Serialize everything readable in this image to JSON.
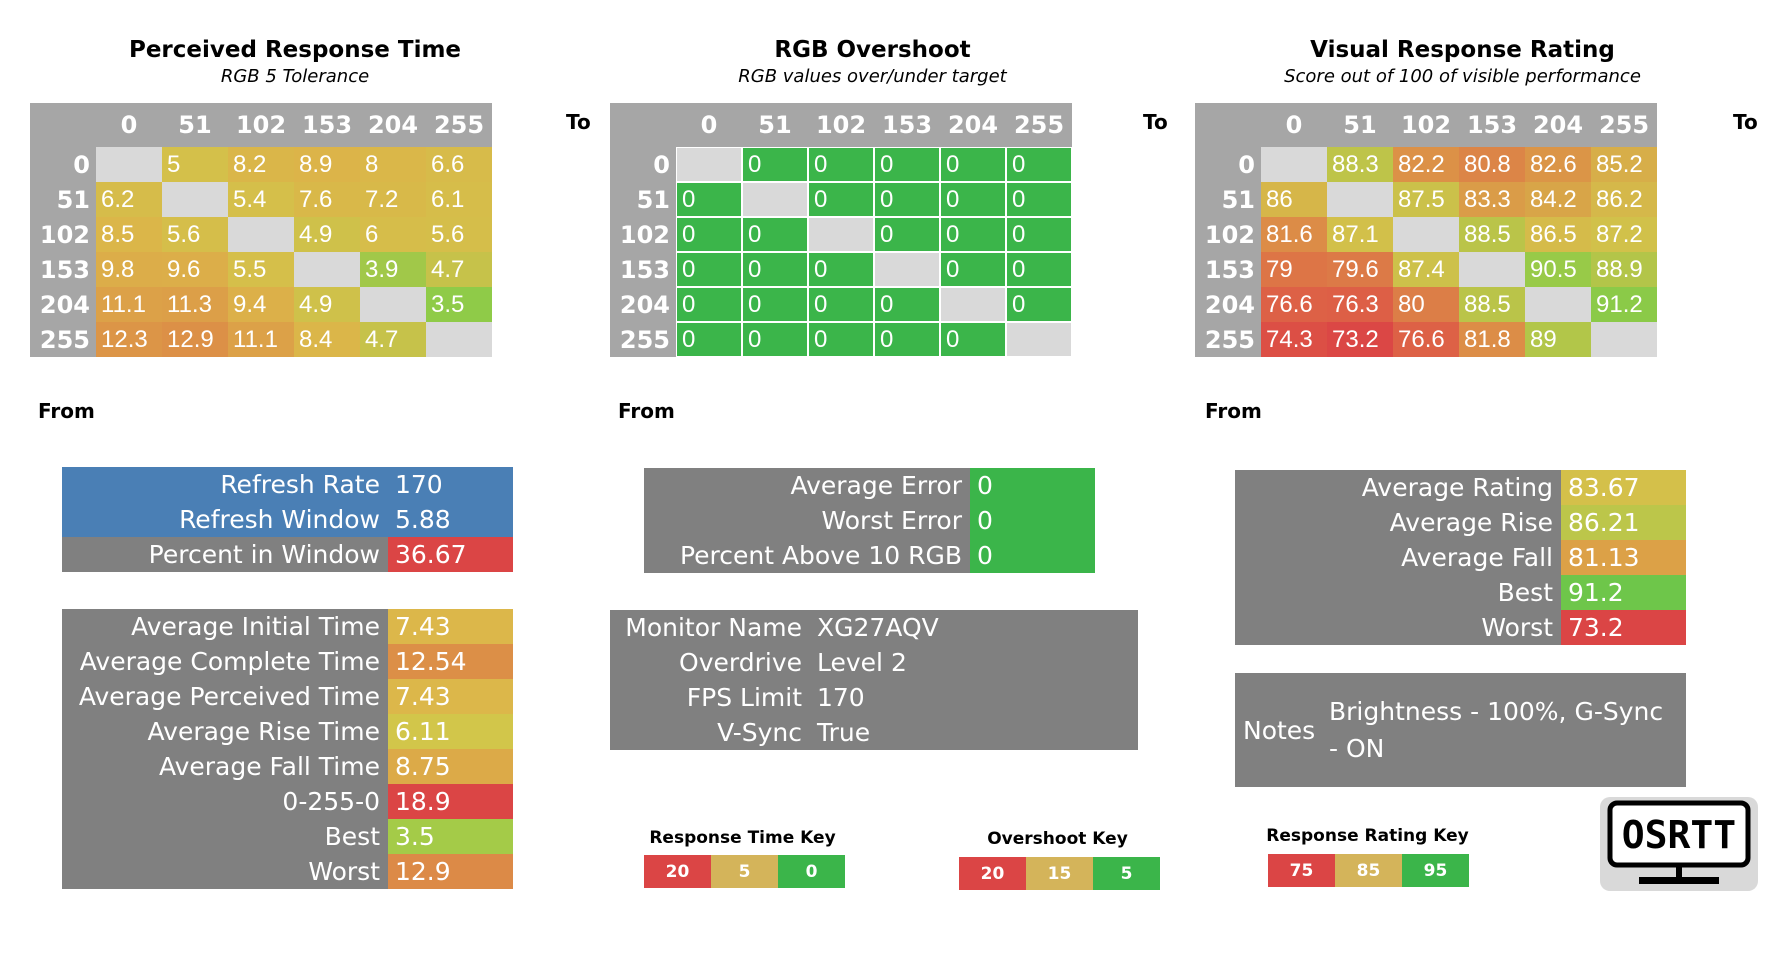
{
  "chart_data": [
    {
      "type": "heatmap",
      "title": "Perceived Response Time",
      "subtitle": "RGB 5 Tolerance",
      "xlabel": "To",
      "ylabel": "From",
      "x": [
        "0",
        "51",
        "102",
        "153",
        "204",
        "255"
      ],
      "y": [
        "0",
        "51",
        "102",
        "153",
        "204",
        "255"
      ],
      "values": [
        [
          null,
          5,
          8.2,
          8.9,
          8,
          6.6
        ],
        [
          6.2,
          null,
          5.4,
          7.6,
          7.2,
          6.1
        ],
        [
          8.5,
          5.6,
          null,
          4.9,
          6,
          5.6
        ],
        [
          9.8,
          9.6,
          5.5,
          null,
          3.9,
          4.7
        ],
        [
          11.1,
          11.3,
          9.4,
          4.9,
          null,
          3.5
        ],
        [
          12.3,
          12.9,
          11.1,
          8.4,
          4.7,
          null
        ]
      ]
    },
    {
      "type": "heatmap",
      "title": "RGB Overshoot",
      "subtitle": "RGB values over/under target",
      "xlabel": "To",
      "ylabel": "From",
      "x": [
        "0",
        "51",
        "102",
        "153",
        "204",
        "255"
      ],
      "y": [
        "0",
        "51",
        "102",
        "153",
        "204",
        "255"
      ],
      "values": [
        [
          null,
          0,
          0,
          0,
          0,
          0
        ],
        [
          0,
          null,
          0,
          0,
          0,
          0
        ],
        [
          0,
          0,
          null,
          0,
          0,
          0
        ],
        [
          0,
          0,
          0,
          null,
          0,
          0
        ],
        [
          0,
          0,
          0,
          0,
          null,
          0
        ],
        [
          0,
          0,
          0,
          0,
          0,
          null
        ]
      ]
    },
    {
      "type": "heatmap",
      "title": "Visual Response Rating",
      "subtitle": "Score out of 100 of visible performance",
      "xlabel": "To",
      "ylabel": "From",
      "x": [
        "0",
        "51",
        "102",
        "153",
        "204",
        "255"
      ],
      "y": [
        "0",
        "51",
        "102",
        "153",
        "204",
        "255"
      ],
      "values": [
        [
          null,
          88.3,
          82.2,
          80.8,
          82.6,
          85.2
        ],
        [
          86,
          null,
          87.5,
          83.3,
          84.2,
          86.2
        ],
        [
          81.6,
          87.1,
          null,
          88.5,
          86.5,
          87.2
        ],
        [
          79,
          79.6,
          87.4,
          null,
          90.5,
          88.9
        ],
        [
          76.6,
          76.3,
          80,
          88.5,
          null,
          91.2
        ],
        [
          74.3,
          73.2,
          76.6,
          81.8,
          89,
          null
        ]
      ]
    }
  ],
  "colors": {
    "header_gray": "#a6a6a6",
    "diag_gray": "#d9d9d9",
    "panel_gray": "#808080",
    "blue": "#4a7fb5",
    "red": "#db4545",
    "yellow": "#d4c04a",
    "light_green": "#8fcb48",
    "green": "#3bb54a",
    "orange": "#dc8f47"
  },
  "refresh_panel": [
    {
      "label": "Refresh Rate",
      "value": "170"
    },
    {
      "label": "Refresh Window",
      "value": "5.88"
    },
    {
      "label": "Percent in Window",
      "value": "36.67"
    }
  ],
  "time_panel": [
    {
      "label": "Average Initial Time",
      "value": "7.43"
    },
    {
      "label": "Average Complete Time",
      "value": "12.54"
    },
    {
      "label": "Average Perceived Time",
      "value": "7.43"
    },
    {
      "label": "Average Rise Time",
      "value": "6.11"
    },
    {
      "label": "Average Fall Time",
      "value": "8.75"
    },
    {
      "label": "0-255-0",
      "value": "18.9"
    },
    {
      "label": "Best",
      "value": "3.5"
    },
    {
      "label": "Worst",
      "value": "12.9"
    }
  ],
  "error_panel": [
    {
      "label": "Average Error",
      "value": "0"
    },
    {
      "label": "Worst Error",
      "value": "0"
    },
    {
      "label": "Percent Above 10 RGB",
      "value": "0"
    }
  ],
  "monitor_panel": [
    {
      "label": "Monitor Name",
      "value": "XG27AQV"
    },
    {
      "label": "Overdrive",
      "value": "Level 2"
    },
    {
      "label": "FPS Limit",
      "value": "170"
    },
    {
      "label": "V-Sync",
      "value": "True"
    }
  ],
  "rating_panel": [
    {
      "label": "Average Rating",
      "value": "83.67"
    },
    {
      "label": "Average Rise",
      "value": "86.21"
    },
    {
      "label": "Average Fall",
      "value": "81.13"
    },
    {
      "label": "Best",
      "value": "91.2"
    },
    {
      "label": "Worst",
      "value": "73.2"
    }
  ],
  "notes": {
    "label": "Notes",
    "value": "Brightness - 100%, G-Sync - ON"
  },
  "keys": [
    {
      "title": "Response Time Key",
      "values": [
        "20",
        "5",
        "0"
      ]
    },
    {
      "title": "Overshoot Key",
      "values": [
        "20",
        "15",
        "5"
      ]
    },
    {
      "title": "Response Rating Key",
      "values": [
        "75",
        "85",
        "95"
      ]
    }
  ],
  "logo": {
    "text": "OSRTT"
  }
}
